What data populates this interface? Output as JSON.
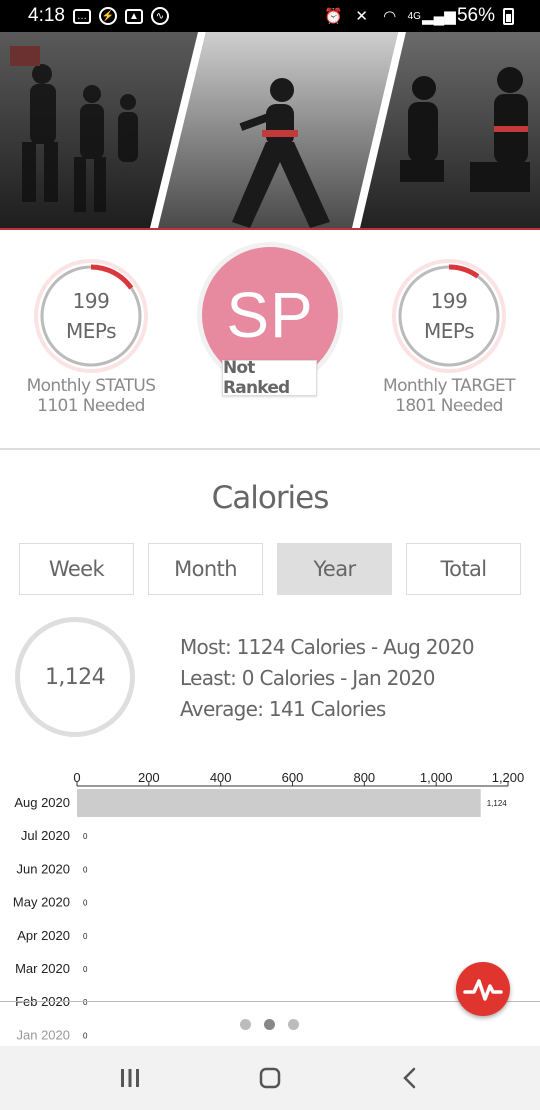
{
  "status_bar": {
    "time": "4:18",
    "battery": "56%",
    "network": "4G"
  },
  "stats": {
    "left": {
      "value": "199",
      "unit": "MEPs",
      "caption_line1": "Monthly STATUS",
      "caption_line2": "1101 Needed",
      "progress": 0.153
    },
    "right": {
      "value": "199",
      "unit": "MEPs",
      "caption_line1": "Monthly TARGET",
      "caption_line2": "1801 Needed",
      "progress": 0.1
    },
    "avatar_initials": "SP",
    "rank": "Not Ranked",
    "accent_color": "#d9363e",
    "avatar_color": "#e7899f"
  },
  "calories": {
    "title": "Calories",
    "tabs": [
      {
        "label": "Week",
        "active": false
      },
      {
        "label": "Month",
        "active": false
      },
      {
        "label": "Year",
        "active": true
      },
      {
        "label": "Total",
        "active": false
      }
    ],
    "summary_value": "1,124",
    "most": "Most: 1124 Calories  -  Aug 2020",
    "least": "Least: 0 Calories  -  Jan 2020",
    "average": "Average: 141 Calories"
  },
  "chart_data": {
    "type": "bar",
    "orientation": "horizontal",
    "categories": [
      "Aug 2020",
      "Jul 2020",
      "Jun 2020",
      "May 2020",
      "Apr 2020",
      "Mar 2020",
      "Feb 2020",
      "Jan 2020"
    ],
    "values": [
      1124,
      0,
      0,
      0,
      0,
      0,
      0,
      0
    ],
    "value_labels": [
      "1,124",
      "0",
      "0",
      "0",
      "0",
      "0",
      "0",
      "0"
    ],
    "xlim": [
      0,
      1200
    ],
    "ticks": [
      "0",
      "200",
      "400",
      "600",
      "800",
      "1,000",
      "1,200"
    ],
    "tick_values": [
      0,
      200,
      400,
      600,
      800,
      1000,
      1200
    ],
    "bar_color": "#cccccc"
  },
  "pager": {
    "count": 3,
    "active": 1
  }
}
